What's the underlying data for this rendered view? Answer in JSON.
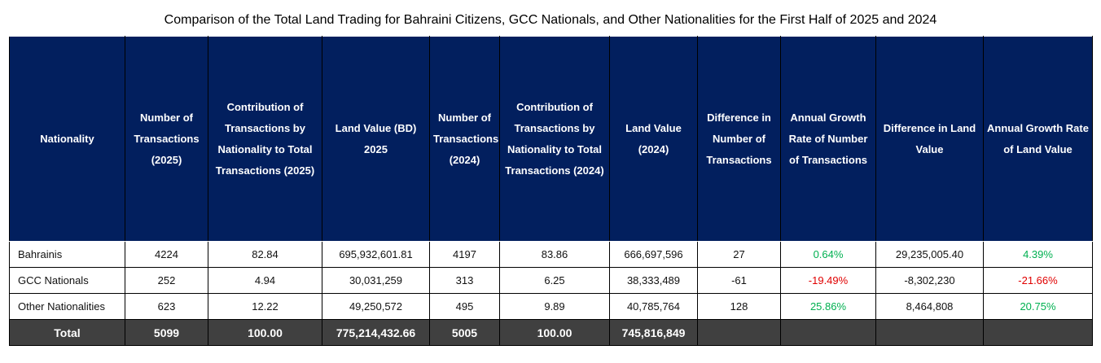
{
  "title": "Comparison of the Total Land Trading for Bahraini Citizens, GCC Nationals, and Other Nationalities for the First Half of 2025 and 2024",
  "headers": [
    "Nationality",
    "Number of Transactions (2025)",
    "Contribution of Transactions by Nationality to Total Transactions (2025)",
    "Land Value (BD) 2025",
    "Number of Transactions (2024)",
    "Contribution of Transactions by Nationality to Total Transactions (2024)",
    "Land Value (2024)",
    "Difference in Number of Transactions",
    "Annual Growth Rate of Number of Transactions",
    "Difference in Land Value",
    "Annual Growth Rate of Land Value"
  ],
  "rows": [
    [
      "Bahrainis",
      "4224",
      "82.84",
      "695,932,601.81",
      "4197",
      "83.86",
      "666,697,596",
      "27",
      "0.64%",
      "29,235,005.40",
      "4.39%"
    ],
    [
      "GCC Nationals",
      "252",
      "4.94",
      "30,031,259",
      "313",
      "6.25",
      "38,333,489",
      "-61",
      "-19.49%",
      "-8,302,230",
      "-21.66%"
    ],
    [
      "Other Nationalities",
      "623",
      "12.22",
      "49,250,572",
      "495",
      "9.89",
      "40,785,764",
      "128",
      "25.86%",
      "8,464,808",
      "20.75%"
    ]
  ],
  "total": [
    "Total",
    "5099",
    "100.00",
    "775,214,432.66",
    "5005",
    "100.00",
    "745,816,849",
    "",
    "",
    "",
    ""
  ],
  "colors": {
    "header": "#021f5e",
    "total": "#404040",
    "positive": "#00b050",
    "negative": "#e00000"
  }
}
